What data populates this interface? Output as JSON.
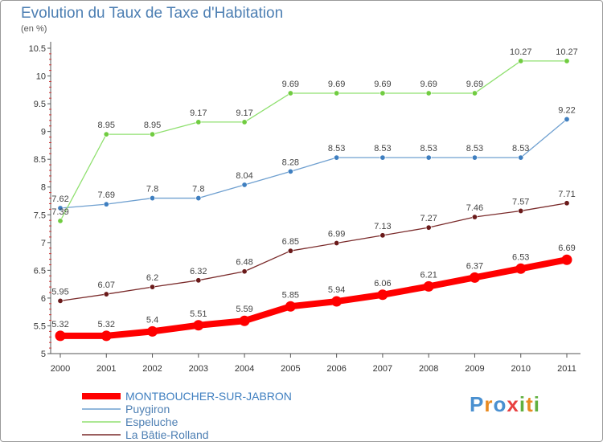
{
  "title": "Evolution du Taux de Taxe d'Habitation",
  "unit_label": "(en %)",
  "logo_text": "Proxiti",
  "chart_data": {
    "type": "line",
    "title": "Evolution du Taux de Taxe d'Habitation",
    "ylabel": "(en %)",
    "xlabel": "",
    "x": [
      2000,
      2001,
      2002,
      2003,
      2004,
      2005,
      2006,
      2007,
      2008,
      2009,
      2010,
      2011
    ],
    "ylim": [
      5,
      10.5
    ],
    "yticks": [
      5,
      5.5,
      6,
      6.5,
      7,
      7.5,
      8,
      8.5,
      9,
      9.5,
      10,
      10.5
    ],
    "grid": false,
    "legend_position": "bottom-left",
    "series": [
      {
        "name": "MONTBOUCHER-SUR-JABRON",
        "color": "#ff0000",
        "marker_color": "#ff0000",
        "values": [
          5.32,
          5.32,
          5.4,
          5.51,
          5.59,
          5.85,
          5.94,
          6.06,
          6.21,
          6.37,
          6.53,
          6.69
        ]
      },
      {
        "name": "Puygiron",
        "color": "#6fa0d0",
        "marker_color": "#3f7fc0",
        "values": [
          7.62,
          7.69,
          7.8,
          7.8,
          8.04,
          8.28,
          8.53,
          8.53,
          8.53,
          8.53,
          8.53,
          9.22
        ]
      },
      {
        "name": "Espeluche",
        "color": "#90e070",
        "marker_color": "#70cc40",
        "values": [
          7.39,
          8.95,
          8.95,
          9.17,
          9.17,
          9.69,
          9.69,
          9.69,
          9.69,
          9.69,
          10.27,
          10.27
        ]
      },
      {
        "name": "La Bâtie-Rolland",
        "color": "#7a2a2a",
        "marker_color": "#6a1a1a",
        "values": [
          5.95,
          6.07,
          6.2,
          6.32,
          6.48,
          6.85,
          6.99,
          7.13,
          7.27,
          7.46,
          7.57,
          7.71
        ]
      }
    ]
  }
}
